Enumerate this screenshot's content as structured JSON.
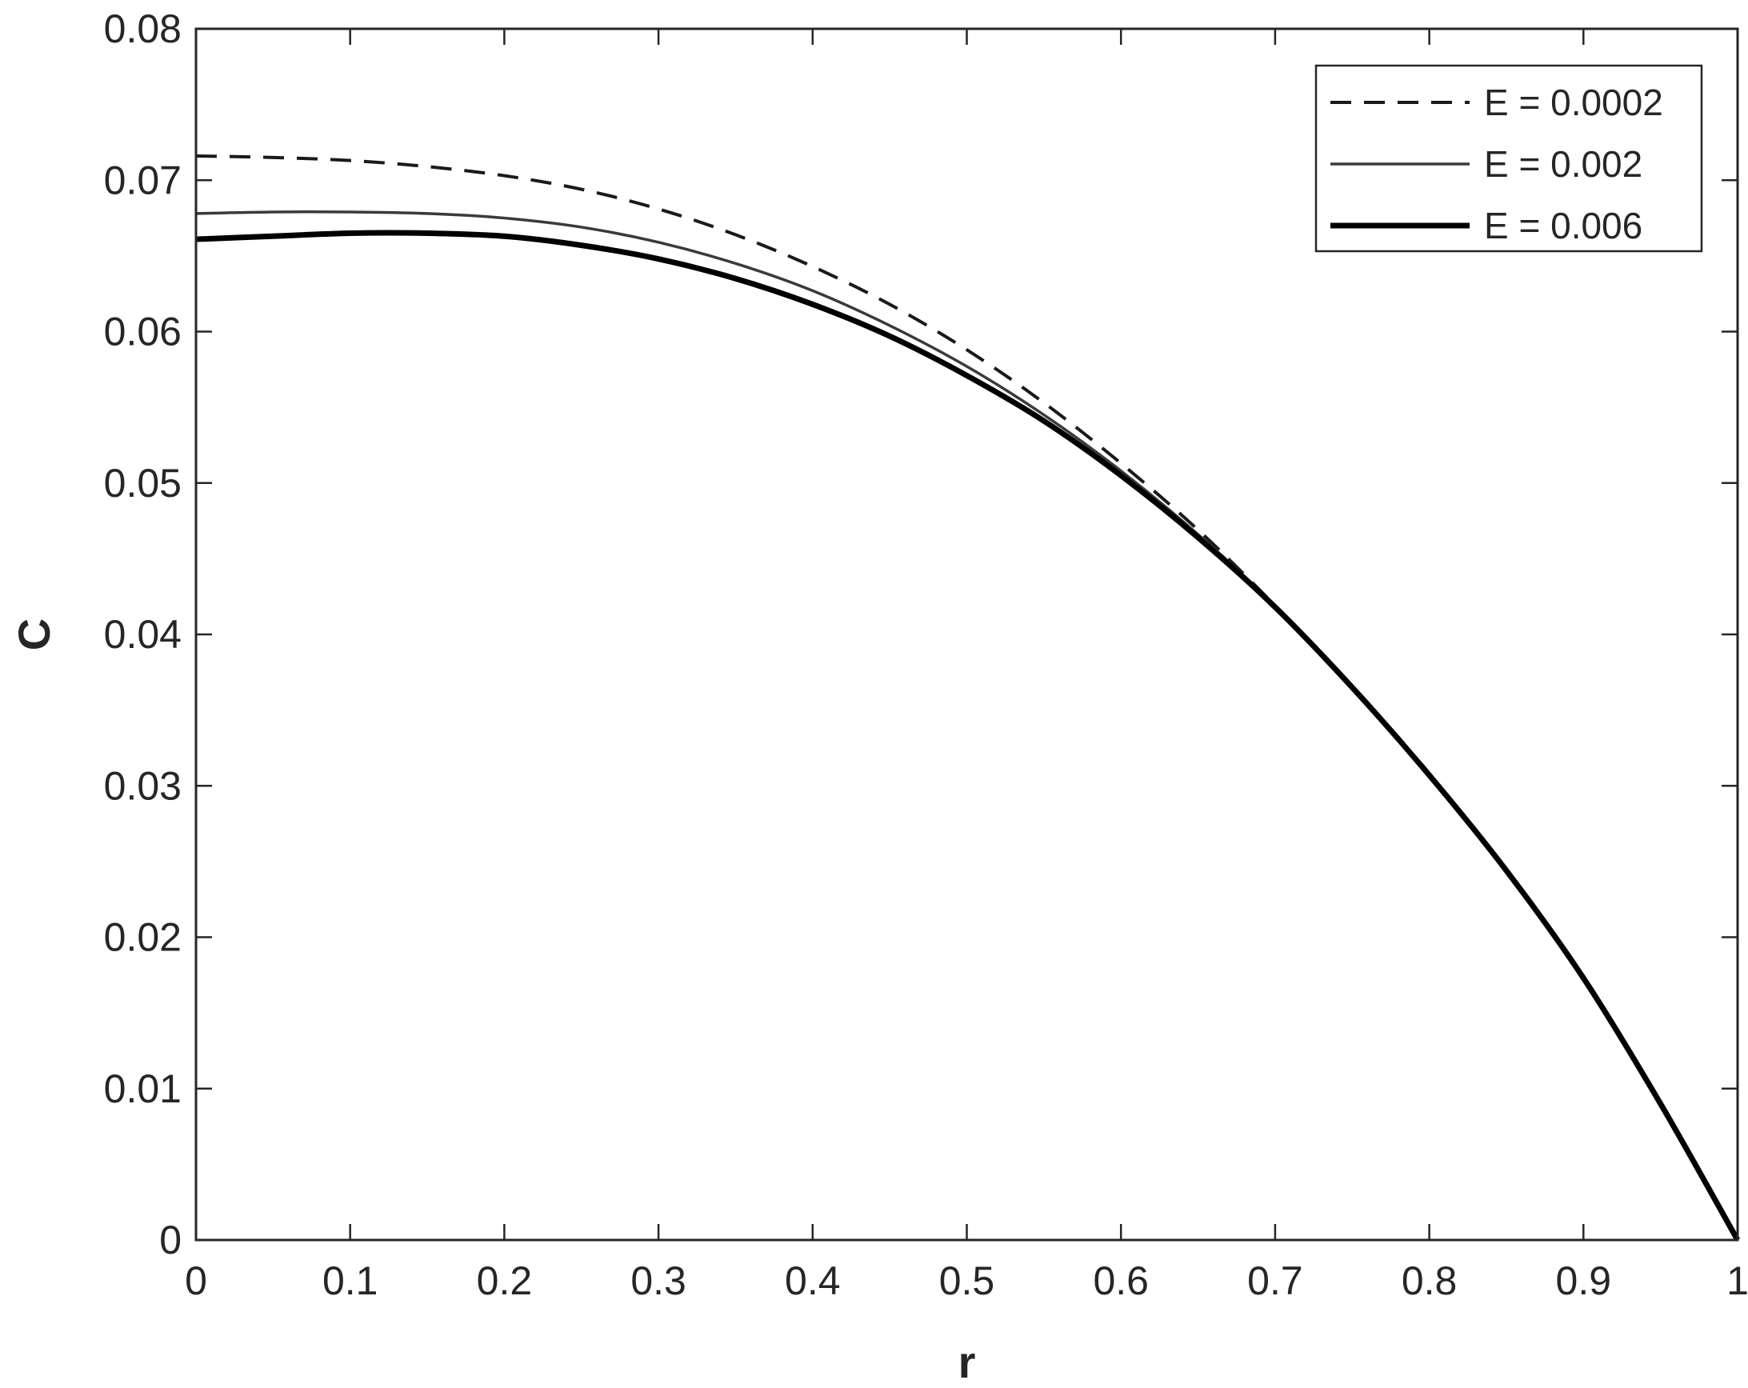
{
  "chart_data": {
    "type": "line",
    "title": "",
    "xlabel": "r",
    "ylabel": "C",
    "xlim": [
      0,
      1
    ],
    "ylim": [
      0,
      0.08
    ],
    "xticks": [
      0,
      0.1,
      0.2,
      0.3,
      0.4,
      0.5,
      0.6,
      0.7,
      0.8,
      0.9,
      1
    ],
    "xtick_labels": [
      "0",
      "0.1",
      "0.2",
      "0.3",
      "0.4",
      "0.5",
      "0.6",
      "0.7",
      "0.8",
      "0.9",
      "1"
    ],
    "yticks": [
      0,
      0.01,
      0.02,
      0.03,
      0.04,
      0.05,
      0.06,
      0.07,
      0.08
    ],
    "ytick_labels": [
      "0",
      "0.01",
      "0.02",
      "0.03",
      "0.04",
      "0.05",
      "0.06",
      "0.07",
      "0.08"
    ],
    "grid": false,
    "legend_position": "top-right",
    "x": [
      0,
      0.05,
      0.1,
      0.15,
      0.2,
      0.25,
      0.3,
      0.35,
      0.4,
      0.45,
      0.5,
      0.55,
      0.6,
      0.65,
      0.7,
      0.75,
      0.8,
      0.85,
      0.9,
      0.95,
      1.0
    ],
    "series": [
      {
        "name": "E = 0.0002",
        "style": "dashed",
        "color": "#1a1a1a",
        "values": [
          0.0716,
          0.0715,
          0.0713,
          0.0709,
          0.0703,
          0.0694,
          0.0681,
          0.0664,
          0.0643,
          0.0618,
          0.0588,
          0.0553,
          0.0513,
          0.0469,
          0.0419,
          0.0365,
          0.0307,
          0.0244,
          0.0173,
          0.009,
          0.0
        ]
      },
      {
        "name": "E = 0.002",
        "style": "solid-thin",
        "color": "#3a3a3a",
        "values": [
          0.0678,
          0.0679,
          0.0679,
          0.0678,
          0.0675,
          0.0669,
          0.0659,
          0.0645,
          0.0627,
          0.0604,
          0.0577,
          0.0545,
          0.0508,
          0.0466,
          0.0419,
          0.0365,
          0.0307,
          0.0244,
          0.0173,
          0.009,
          0.0
        ]
      },
      {
        "name": "E = 0.006",
        "style": "solid-thick",
        "color": "#000000",
        "values": [
          0.0661,
          0.0663,
          0.0665,
          0.0665,
          0.0663,
          0.0657,
          0.0648,
          0.0635,
          0.0618,
          0.0597,
          0.0571,
          0.0541,
          0.0505,
          0.0464,
          0.0418,
          0.0365,
          0.0307,
          0.0244,
          0.0173,
          0.009,
          0.0
        ]
      }
    ]
  }
}
